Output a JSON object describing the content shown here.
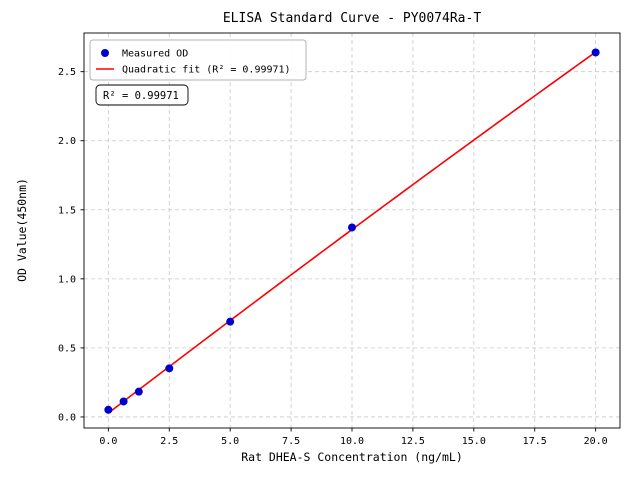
{
  "window": {
    "background": "#ffffff"
  },
  "chart_data": {
    "type": "scatter",
    "title": "ELISA Standard Curve - PY0074Ra-T",
    "xlabel": "Rat DHEA-S Concentration (ng/mL)",
    "ylabel": "OD Value(450nm)",
    "xlim": [
      -1,
      21
    ],
    "ylim": [
      -0.08,
      2.78
    ],
    "xticks": [
      0,
      2.5,
      5,
      7.5,
      10,
      12.5,
      15,
      17.5,
      20
    ],
    "yticks": [
      0,
      0.5,
      1,
      1.5,
      2,
      2.5
    ],
    "grid": true,
    "grid_color": "#c9c9c9",
    "axis_color": "#000000",
    "legend_position": "upper-left",
    "series": [
      {
        "name": "Measured OD",
        "type": "scatter",
        "marker": "circle",
        "color": "#0000cd",
        "x": [
          0,
          0.625,
          1.25,
          2.5,
          5,
          10,
          20
        ],
        "y": [
          0.052,
          0.112,
          0.183,
          0.352,
          0.69,
          1.372,
          2.639
        ]
      },
      {
        "name": "Quadratic fit (R² = 0.99971)",
        "type": "line",
        "fit": "quadratic",
        "color": "#ff0000",
        "x_range": [
          0,
          20
        ]
      }
    ],
    "annotation": "R² = 0.99971",
    "r_squared": 0.99971
  }
}
